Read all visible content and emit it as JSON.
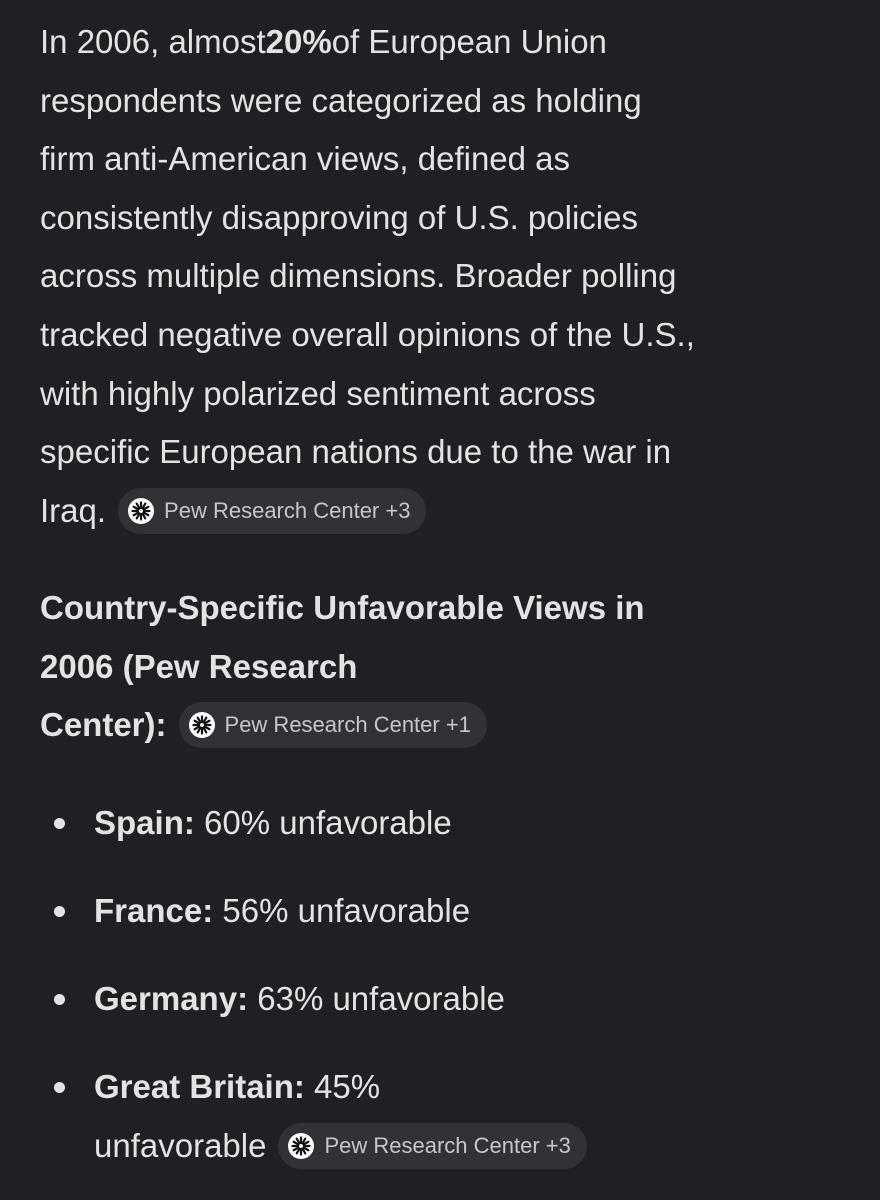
{
  "paragraph": {
    "first_line": {
      "before": "In 2006, almost ",
      "bold": "20%",
      "after": " of European Union"
    },
    "lines": [
      "respondents were categorized as holding",
      "firm anti-American views, defined as",
      "consistently disapproving of U.S. policies",
      "across multiple dimensions. Broader polling",
      "tracked negative overall opinions of the U.S.,",
      "with highly polarized sentiment across",
      "specific European nations due to the war in",
      "Iraq."
    ],
    "chip": "Pew Research Center +3"
  },
  "heading": {
    "lines": [
      "Country-Specific Unfavorable Views in",
      "2006 (Pew Research",
      "Center):"
    ],
    "chip": "Pew Research Center +1"
  },
  "list": [
    {
      "label": "Spain:",
      "text": [
        "60% unfavorable"
      ]
    },
    {
      "label": "France:",
      "text": [
        "56% unfavorable"
      ]
    },
    {
      "label": "Germany:",
      "text": [
        "63% unfavorable"
      ]
    },
    {
      "label": "Great Britain:",
      "text": [
        "45%",
        "unfavorable"
      ],
      "chip": "Pew Research Center +3"
    }
  ]
}
